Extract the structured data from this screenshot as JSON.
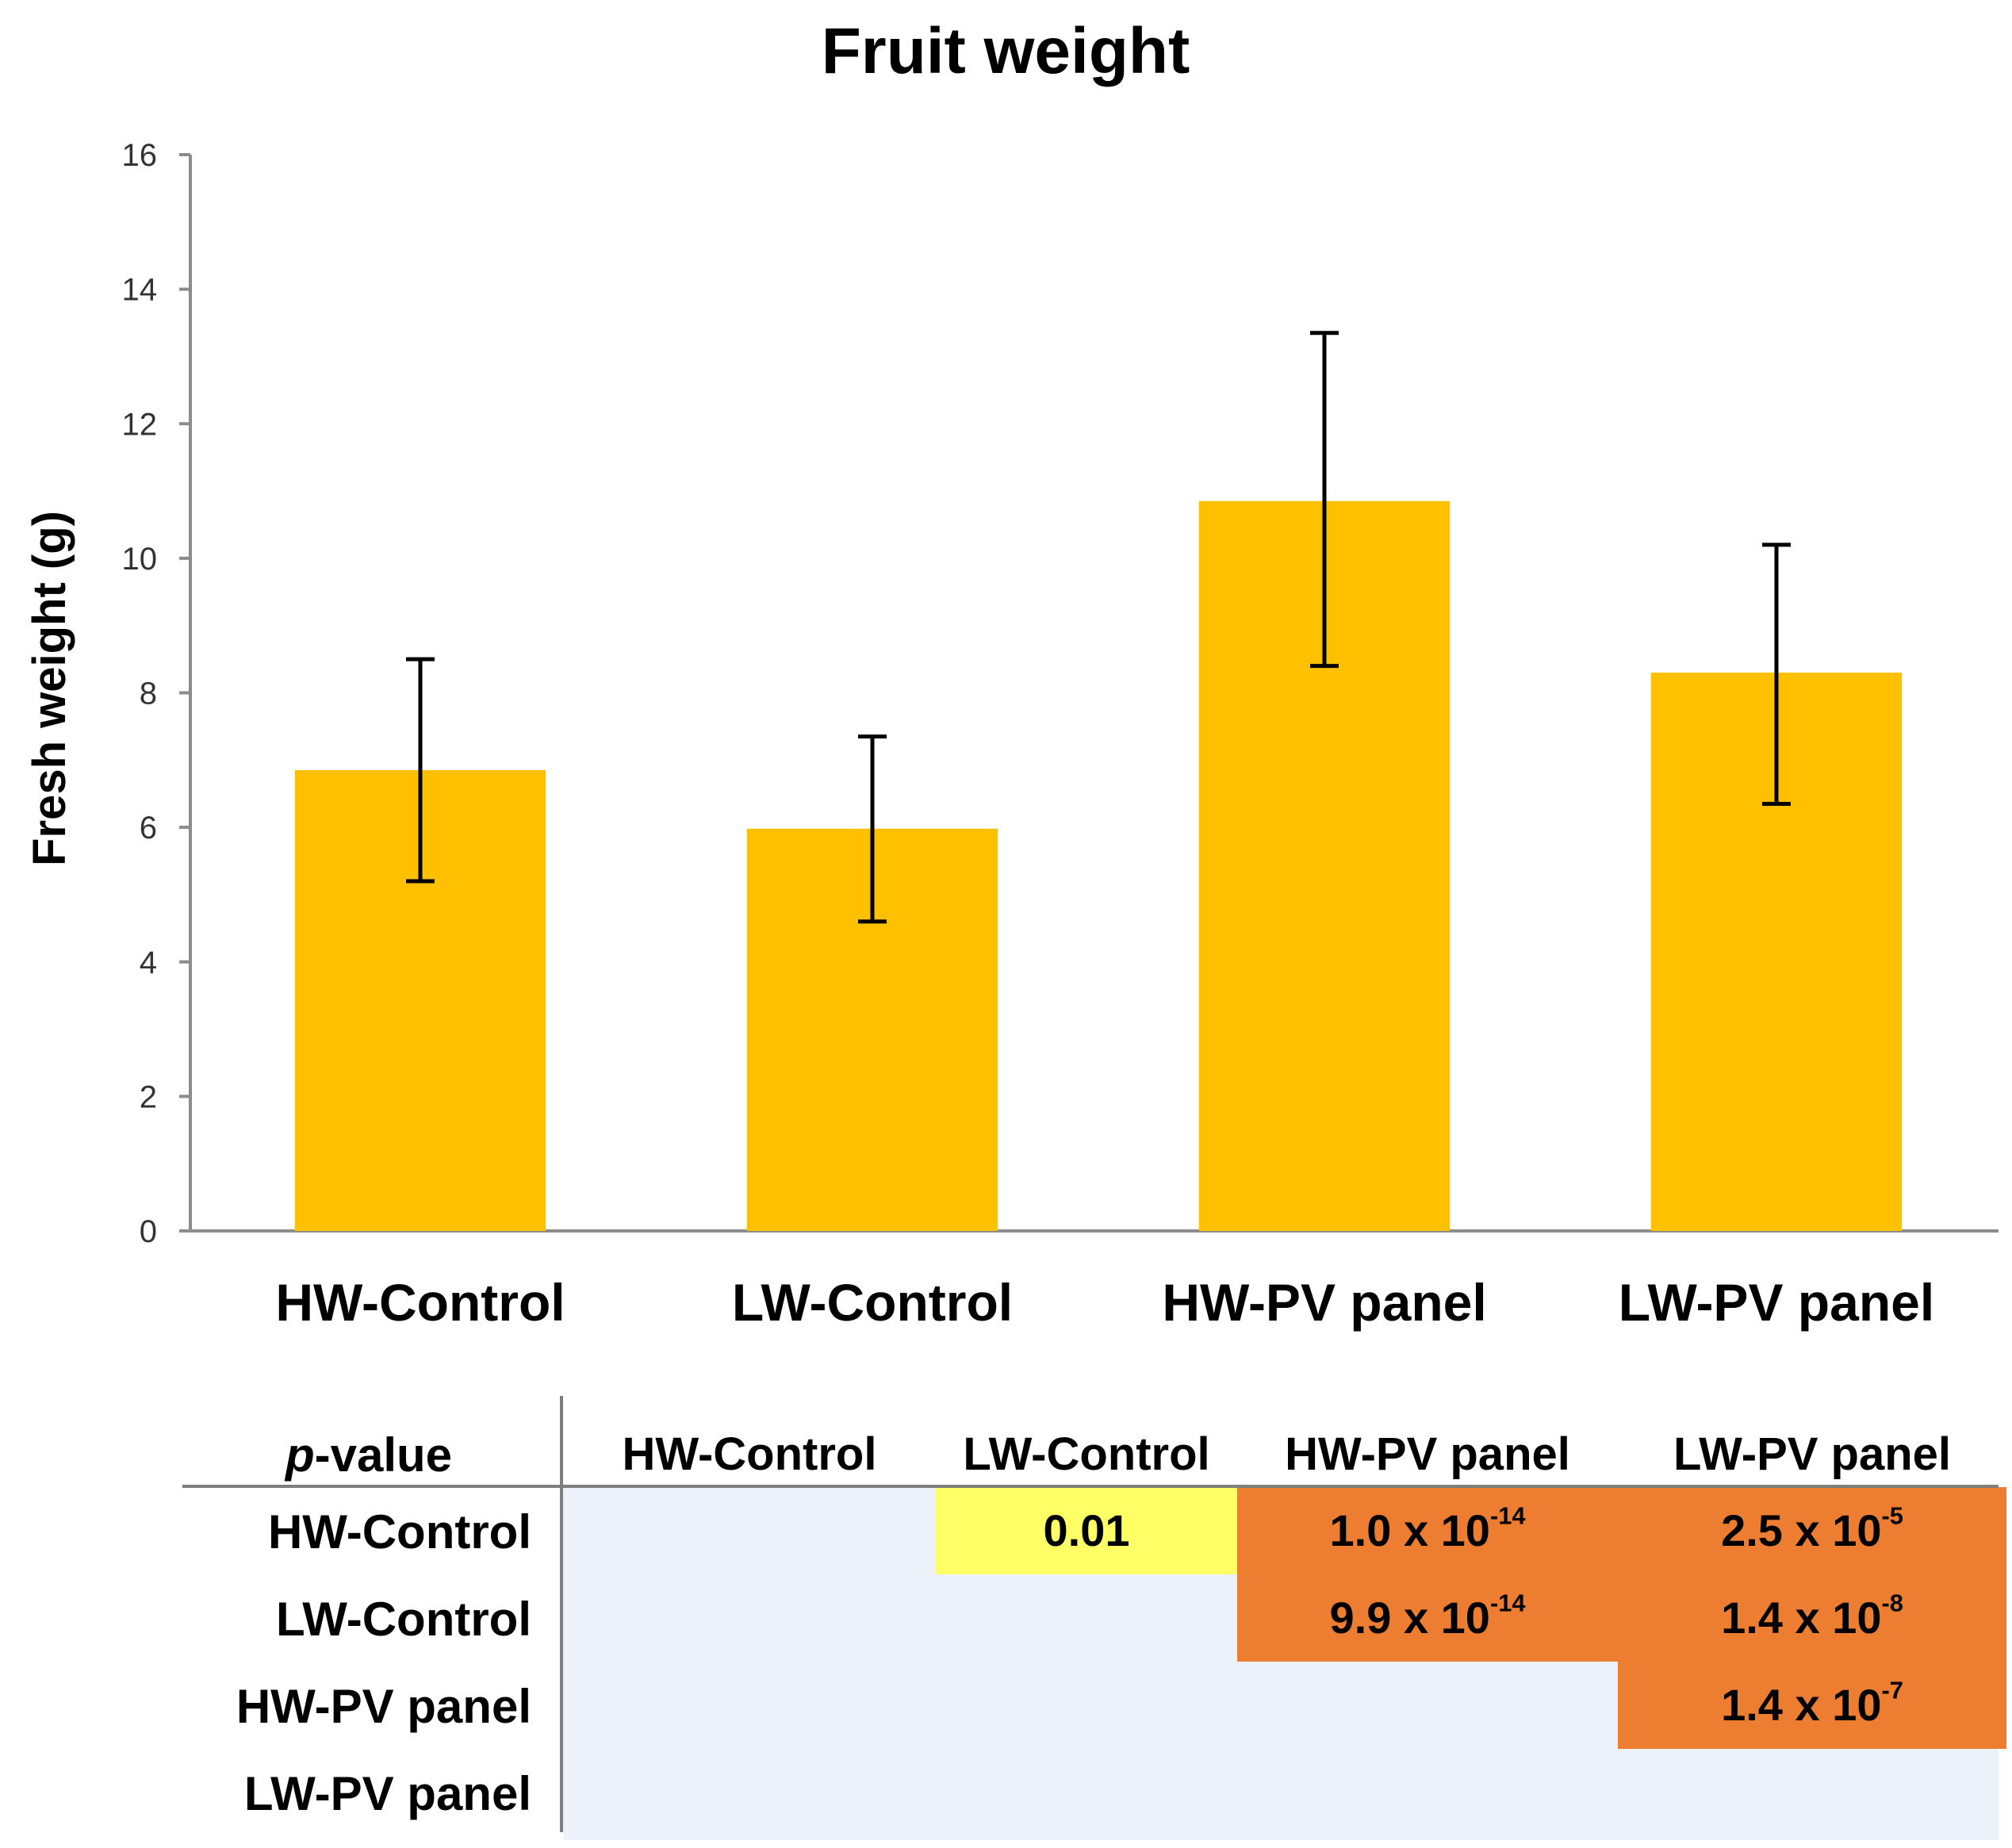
{
  "chart_data": {
    "type": "bar",
    "title": "Fruit weight",
    "xlabel": "",
    "ylabel": "Fresh weight (g)",
    "ylim": [
      0,
      16
    ],
    "yticks": [
      0,
      2,
      4,
      6,
      8,
      10,
      12,
      14,
      16
    ],
    "categories": [
      "HW-Control",
      "LW-Control",
      "HW-PV panel",
      "LW-PV panel"
    ],
    "values": [
      6.85,
      5.98,
      10.85,
      8.3
    ],
    "error_low": [
      5.2,
      4.6,
      8.4,
      6.35
    ],
    "error_high": [
      8.5,
      7.35,
      13.35,
      10.2
    ],
    "bar_color": "#FFC000",
    "grid": false
  },
  "pvalue_table": {
    "corner_italic": "p",
    "corner_rest": "-value",
    "col_headers": [
      "HW-Control",
      "LW-Control",
      "HW-PV panel",
      "LW-PV panel"
    ],
    "row_headers": [
      "HW-Control",
      "LW-Control",
      "HW-PV panel",
      "LW-PV panel"
    ],
    "cells": [
      {
        "row": 0,
        "col": 1,
        "mantissa": "0.01",
        "exp": "",
        "color": "#FFFF66"
      },
      {
        "row": 0,
        "col": 2,
        "mantissa": "1.0 x 10",
        "exp": "-14",
        "color": "#ED7D31"
      },
      {
        "row": 0,
        "col": 3,
        "mantissa": "2.5 x 10",
        "exp": "-5",
        "color": "#ED7D31"
      },
      {
        "row": 1,
        "col": 2,
        "mantissa": "9.9 x 10",
        "exp": "-14",
        "color": "#ED7D31"
      },
      {
        "row": 1,
        "col": 3,
        "mantissa": "1.4 x 10",
        "exp": "-8",
        "color": "#ED7D31"
      },
      {
        "row": 2,
        "col": 3,
        "mantissa": "1.4 x 10",
        "exp": "-7",
        "color": "#ED7D31"
      }
    ],
    "background_color": "#EDF1F9"
  }
}
